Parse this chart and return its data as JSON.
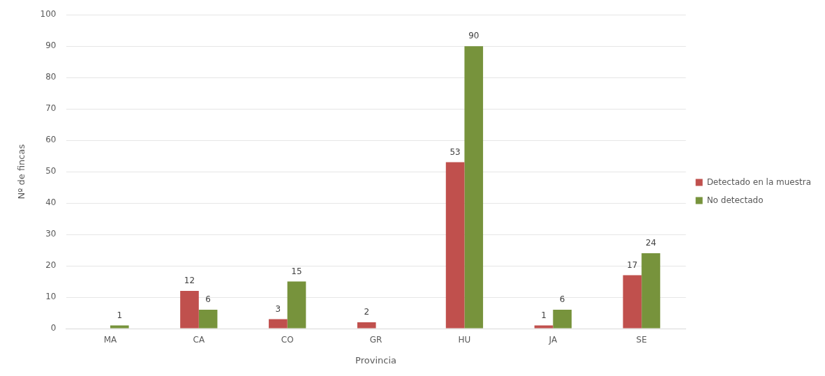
{
  "chart_data": {
    "type": "bar",
    "xlabel": "Provincia",
    "ylabel": "Nº de fincas",
    "categories": [
      "MA",
      "CA",
      "CO",
      "GR",
      "HU",
      "JA",
      "SE"
    ],
    "series": [
      {
        "name": "Detectado en la muestra",
        "color": "#c0504d",
        "values": [
          null,
          12,
          3,
          2,
          53,
          1,
          17
        ]
      },
      {
        "name": "No detectado",
        "color": "#77933c",
        "values": [
          1,
          6,
          15,
          null,
          90,
          6,
          24
        ]
      }
    ],
    "ylim": [
      0,
      100
    ],
    "yticks": [
      0,
      10,
      20,
      30,
      40,
      50,
      60,
      70,
      80,
      90,
      100
    ],
    "grid": "y",
    "legend": "right",
    "data_labels": true
  }
}
